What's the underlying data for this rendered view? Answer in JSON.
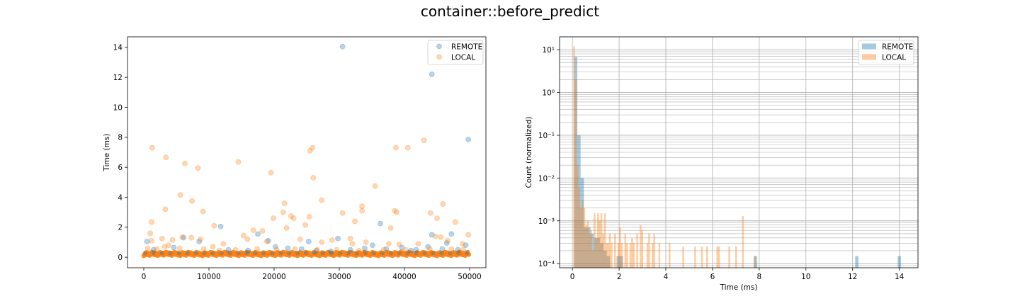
{
  "figure": {
    "title": "container::before_predict"
  },
  "colors": {
    "remote": "#1f77b4",
    "local": "#ff7f0e",
    "grid": "#b0b0b0"
  },
  "chart_data": [
    {
      "type": "scatter",
      "xlabel": "",
      "ylabel": "Time (ms)",
      "xlim": [
        -2500,
        52500
      ],
      "ylim": [
        -0.7,
        14.7
      ],
      "xticks": [
        0,
        10000,
        20000,
        30000,
        40000,
        50000
      ],
      "yticks": [
        0,
        2,
        4,
        6,
        8,
        10,
        12,
        14
      ],
      "grid": false,
      "legend": {
        "placement": "upper right",
        "entries": [
          "REMOTE",
          "LOCAL"
        ]
      },
      "baseline_band": {
        "x": [
          0,
          50000
        ],
        "y": [
          0.1,
          0.35
        ],
        "note_series": "LOCAL"
      },
      "series": [
        {
          "name": "REMOTE",
          "color": "#1f77b4",
          "points": [
            [
              30500,
              14.05
            ],
            [
              44200,
              12.2
            ],
            [
              49800,
              7.85
            ],
            [
              11800,
              2.05
            ],
            [
              17500,
              1.55
            ],
            [
              36300,
              2.25
            ],
            [
              47200,
              1.55
            ],
            [
              44200,
              1.5
            ],
            [
              49400,
              0.8
            ],
            [
              19100,
              1.1
            ],
            [
              29800,
              1.25
            ],
            [
              25300,
              1.05
            ],
            [
              6100,
              1.3
            ],
            [
              8500,
              1.05
            ],
            [
              500,
              1.05
            ],
            [
              4600,
              0.65
            ],
            [
              13000,
              0.5
            ],
            [
              20200,
              0.7
            ],
            [
              24200,
              0.55
            ],
            [
              26500,
              0.45
            ],
            [
              28700,
              0.4
            ],
            [
              31700,
              0.5
            ],
            [
              33900,
              0.6
            ],
            [
              35100,
              0.8
            ],
            [
              37200,
              0.55
            ],
            [
              39600,
              0.65
            ],
            [
              41800,
              0.5
            ],
            [
              43600,
              0.7
            ],
            [
              45800,
              0.55
            ],
            [
              48200,
              0.5
            ],
            [
              46500,
              0.95
            ],
            [
              41000,
              0.45
            ],
            [
              16000,
              0.45
            ],
            [
              1500,
              0.5
            ],
            [
              22100,
              0.6
            ]
          ]
        },
        {
          "name": "LOCAL",
          "color": "#ff7f0e",
          "points": [
            [
              1300,
              7.3
            ],
            [
              3400,
              6.65
            ],
            [
              6300,
              6.25
            ],
            [
              8300,
              5.95
            ],
            [
              14500,
              6.35
            ],
            [
              25500,
              7.1
            ],
            [
              25900,
              7.3
            ],
            [
              40500,
              7.3
            ],
            [
              38700,
              7.3
            ],
            [
              43000,
              7.8
            ],
            [
              19500,
              5.65
            ],
            [
              26000,
              5.3
            ],
            [
              35500,
              4.75
            ],
            [
              5600,
              4.15
            ],
            [
              7400,
              3.75
            ],
            [
              27300,
              3.8
            ],
            [
              3300,
              3.2
            ],
            [
              9100,
              3.05
            ],
            [
              21600,
              3.6
            ],
            [
              30500,
              2.95
            ],
            [
              33500,
              3.4
            ],
            [
              38500,
              3.1
            ],
            [
              38800,
              3.0
            ],
            [
              44000,
              2.95
            ],
            [
              45900,
              3.55
            ],
            [
              1200,
              2.35
            ],
            [
              5900,
              1.35
            ],
            [
              10800,
              2.1
            ],
            [
              15300,
              1.45
            ],
            [
              18200,
              1.75
            ],
            [
              19900,
              2.6
            ],
            [
              21400,
              3.0
            ],
            [
              23000,
              2.6
            ],
            [
              22600,
              2.75
            ],
            [
              24800,
              2.15
            ],
            [
              25400,
              2.7
            ],
            [
              31700,
              1.25
            ],
            [
              32400,
              2.4
            ],
            [
              33500,
              3.1
            ],
            [
              37900,
              1.95
            ],
            [
              45000,
              2.6
            ],
            [
              45600,
              1.35
            ],
            [
              47800,
              2.35
            ],
            [
              1000,
              1.6
            ],
            [
              1200,
              1.1
            ],
            [
              2800,
              1.25
            ],
            [
              3800,
              0.8
            ],
            [
              4400,
              1.15
            ],
            [
              7300,
              1.3
            ],
            [
              8700,
              1.2
            ],
            [
              10600,
              0.7
            ],
            [
              12200,
              0.9
            ],
            [
              15900,
              1.2
            ],
            [
              16800,
              1.8
            ],
            [
              18900,
              1.05
            ],
            [
              21900,
              1.95
            ],
            [
              24000,
              1.2
            ],
            [
              27300,
              1.0
            ],
            [
              28900,
              1.15
            ],
            [
              32000,
              0.9
            ],
            [
              34100,
              1.0
            ],
            [
              37600,
              0.9
            ],
            [
              39200,
              0.85
            ],
            [
              42100,
              0.9
            ],
            [
              44800,
              1.4
            ],
            [
              46600,
              1.1
            ],
            [
              48900,
              0.9
            ],
            [
              49800,
              1.5
            ],
            [
              600,
              0.6
            ],
            [
              2000,
              0.55
            ],
            [
              3200,
              0.7
            ],
            [
              5500,
              0.6
            ],
            [
              9200,
              0.55
            ],
            [
              11600,
              0.45
            ],
            [
              14100,
              0.5
            ],
            [
              17400,
              0.55
            ],
            [
              20400,
              0.5
            ],
            [
              23200,
              0.55
            ],
            [
              26600,
              0.5
            ],
            [
              29600,
              0.5
            ],
            [
              33000,
              0.45
            ],
            [
              36800,
              0.5
            ],
            [
              40200,
              0.5
            ],
            [
              43900,
              0.55
            ],
            [
              47200,
              0.55
            ],
            [
              49000,
              0.5
            ]
          ]
        }
      ]
    },
    {
      "type": "bar",
      "subtype": "histogram",
      "xlabel": "Time (ms)",
      "ylabel": "Count (normalized)",
      "yscale": "log",
      "xlim": [
        -0.55,
        14.8
      ],
      "ylim": [
        8e-05,
        20
      ],
      "xticks": [
        0,
        2,
        4,
        6,
        8,
        10,
        12,
        14
      ],
      "yticks": [
        0.0001,
        0.001,
        0.01,
        0.1,
        1,
        10
      ],
      "ytick_labels": [
        "10⁻⁴",
        "10⁻³",
        "10⁻²",
        "10⁻¹",
        "10⁰",
        "10¹"
      ],
      "grid": true,
      "legend": {
        "placement": "upper right",
        "entries": [
          "REMOTE",
          "LOCAL"
        ]
      },
      "series": [
        {
          "name": "REMOTE",
          "color": "#1f77b4",
          "bin_width": 0.14,
          "bars": [
            [
              0.14,
              6.8
            ],
            [
              0.28,
              0.1
            ],
            [
              0.42,
              0.01
            ],
            [
              0.56,
              0.0007
            ],
            [
              0.7,
              0.0007
            ],
            [
              0.84,
              0.0005
            ],
            [
              0.98,
              0.0004
            ],
            [
              1.12,
              0.0004
            ],
            [
              1.26,
              0.0003
            ],
            [
              1.4,
              0.0002
            ],
            [
              1.54,
              0.00015
            ],
            [
              1.96,
              0.00015
            ],
            [
              2.1,
              0.00015
            ],
            [
              7.84,
              0.00015
            ],
            [
              12.18,
              0.00015
            ],
            [
              14.0,
              0.00015
            ]
          ]
        },
        {
          "name": "LOCAL",
          "color": "#ff7f0e",
          "bin_width": 0.073,
          "bars": [
            [
              0.073,
              12
            ],
            [
              0.146,
              2
            ],
            [
              0.219,
              0.02
            ],
            [
              0.292,
              0.006
            ],
            [
              0.365,
              0.002
            ],
            [
              0.438,
              0.003
            ],
            [
              0.511,
              0.002
            ],
            [
              0.584,
              0.0008
            ],
            [
              0.657,
              0.001
            ],
            [
              0.73,
              0.0005
            ],
            [
              0.803,
              0.0006
            ],
            [
              0.876,
              0.0002
            ],
            [
              0.949,
              0.0015
            ],
            [
              1.022,
              0.0004
            ],
            [
              1.095,
              0.0015
            ],
            [
              1.168,
              0.001
            ],
            [
              1.241,
              0.0015
            ],
            [
              1.314,
              0.0005
            ],
            [
              1.387,
              0.0015
            ],
            [
              1.46,
              0.0003
            ],
            [
              1.533,
              0.0003
            ],
            [
              1.606,
              0.0005
            ],
            [
              1.679,
              0.0003
            ],
            [
              1.825,
              0.0005
            ],
            [
              1.971,
              0.0003
            ],
            [
              2.044,
              0.0007
            ],
            [
              2.117,
              0.0003
            ],
            [
              2.263,
              0.0005
            ],
            [
              2.336,
              0.0003
            ],
            [
              2.482,
              0.0003
            ],
            [
              2.555,
              0.0004
            ],
            [
              2.628,
              0.0003
            ],
            [
              2.774,
              0.0005
            ],
            [
              2.92,
              0.0008
            ],
            [
              2.993,
              0.0006
            ],
            [
              3.212,
              0.0003
            ],
            [
              3.285,
              0.0005
            ],
            [
              3.431,
              0.0003
            ],
            [
              3.504,
              0.0005
            ],
            [
              3.723,
              0.0003
            ],
            [
              4.161,
              0.0003
            ],
            [
              4.745,
              0.00025
            ],
            [
              5.256,
              0.00025
            ],
            [
              5.548,
              0.00025
            ],
            [
              5.767,
              0.00025
            ],
            [
              6.205,
              0.00025
            ],
            [
              6.278,
              0.00025
            ],
            [
              6.716,
              0.00025
            ],
            [
              7.008,
              0.00025
            ],
            [
              7.3,
              0.0013
            ],
            [
              7.81,
              0.00015
            ]
          ]
        }
      ]
    }
  ]
}
